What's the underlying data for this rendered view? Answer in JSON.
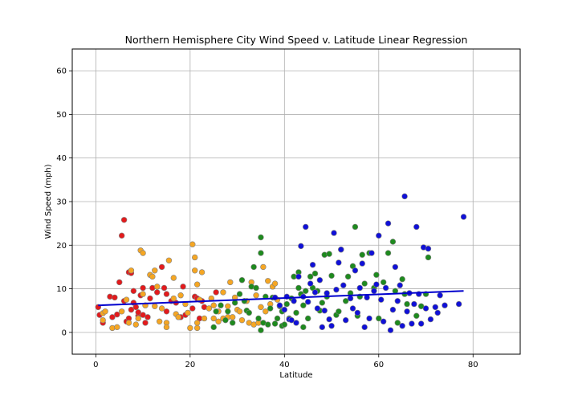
{
  "chart_data": {
    "type": "scatter",
    "title": "Northern Hemisphere City Wind Speed v. Latitude Linear Regression",
    "xlabel": "Latitude",
    "ylabel": "Wind Speed (mph)",
    "xlim": [
      -5,
      90
    ],
    "ylim": [
      -5,
      65
    ],
    "xticks": [
      0,
      20,
      40,
      60,
      80
    ],
    "yticks": [
      0,
      10,
      20,
      30,
      40,
      50,
      60
    ],
    "grid": true,
    "colors": {
      "red": "#e31a1c",
      "orange": "#f5a623",
      "green": "#1e8a1e",
      "blue": "#1010d8",
      "edge": "#808080",
      "regression": "#0000cd"
    },
    "series": [
      {
        "color_key": "red",
        "points": [
          [
            0.5,
            5.8
          ],
          [
            0.8,
            4.0
          ],
          [
            1.5,
            2.2
          ],
          [
            3,
            8.2
          ],
          [
            3.5,
            3.5
          ],
          [
            4,
            8
          ],
          [
            4.5,
            4.1
          ],
          [
            5,
            11.5
          ],
          [
            5.5,
            22.2
          ],
          [
            6,
            25.8
          ],
          [
            6,
            7.2
          ],
          [
            6.5,
            2.5
          ],
          [
            7,
            3.2
          ],
          [
            7,
            13.8
          ],
          [
            7.5,
            5.2
          ],
          [
            7.5,
            13.6
          ],
          [
            8,
            9.5
          ],
          [
            8,
            6.8
          ],
          [
            8.5,
            5.8
          ],
          [
            9,
            3.8
          ],
          [
            9,
            4.6
          ],
          [
            9.5,
            8.5
          ],
          [
            10,
            10.2
          ],
          [
            10,
            4.0
          ],
          [
            10.5,
            2.2
          ],
          [
            11,
            3.5
          ],
          [
            11.5,
            7.8
          ],
          [
            12,
            10.2
          ],
          [
            13,
            9.2
          ],
          [
            14,
            15
          ],
          [
            14.5,
            10.2
          ],
          [
            15,
            8.8
          ],
          [
            15,
            4.8
          ],
          [
            16,
            7.2
          ],
          [
            17,
            6.8
          ],
          [
            18,
            3.5
          ],
          [
            18.5,
            10.5
          ],
          [
            19,
            4.0
          ],
          [
            20.5,
            5.5
          ],
          [
            21,
            8.2
          ],
          [
            21.5,
            7.8
          ],
          [
            22,
            3.2
          ],
          [
            22.5,
            7.2
          ],
          [
            23,
            5.8
          ],
          [
            25.5,
            9.2
          ]
        ]
      },
      {
        "color_key": "orange",
        "points": [
          [
            1.5,
            4.4
          ],
          [
            1.5,
            2.8
          ],
          [
            2,
            4.8
          ],
          [
            3.5,
            1.0
          ],
          [
            4.5,
            1.2
          ],
          [
            5.5,
            4.8
          ],
          [
            6.5,
            7.5
          ],
          [
            7,
            2.2
          ],
          [
            7.5,
            14.2
          ],
          [
            8.5,
            1.8
          ],
          [
            9,
            3.2
          ],
          [
            9.5,
            18.8
          ],
          [
            10,
            18.2
          ],
          [
            10,
            8.8
          ],
          [
            10.5,
            6.2
          ],
          [
            11.5,
            13.2
          ],
          [
            12,
            12.8
          ],
          [
            12.5,
            14.2
          ],
          [
            12.5,
            6.0
          ],
          [
            13,
            10.5
          ],
          [
            13.5,
            2.5
          ],
          [
            14,
            5.5
          ],
          [
            15,
            2.2
          ],
          [
            15,
            1.2
          ],
          [
            15.5,
            16.5
          ],
          [
            16.5,
            7.8
          ],
          [
            16.5,
            12.5
          ],
          [
            17,
            4.2
          ],
          [
            17.5,
            3.5
          ],
          [
            18,
            8.5
          ],
          [
            19,
            6.5
          ],
          [
            19.5,
            4.5
          ],
          [
            20,
            1.0
          ],
          [
            20.5,
            20.2
          ],
          [
            21,
            17.2
          ],
          [
            21,
            14.2
          ],
          [
            21.5,
            11.0
          ],
          [
            21.5,
            2.2
          ],
          [
            21.5,
            1.0
          ],
          [
            22,
            7.5
          ],
          [
            22.5,
            13.8
          ],
          [
            23,
            3.2
          ],
          [
            24,
            5.5
          ],
          [
            24.5,
            7.8
          ],
          [
            25,
            3.2
          ],
          [
            25,
            6.2
          ],
          [
            26,
            4.8
          ],
          [
            26,
            2.5
          ],
          [
            27,
            9.2
          ],
          [
            27,
            3.2
          ],
          [
            28,
            3.5
          ],
          [
            28,
            6.0
          ],
          [
            28.5,
            11.5
          ],
          [
            29,
            3.5
          ],
          [
            29.5,
            8.0
          ],
          [
            30,
            5.2
          ],
          [
            30.5,
            4.8
          ],
          [
            31,
            2.8
          ],
          [
            32,
            7.2
          ],
          [
            32.5,
            2.2
          ],
          [
            33,
            11.5
          ],
          [
            33.5,
            1.8
          ],
          [
            34,
            8.5
          ],
          [
            34.5,
            2.2
          ],
          [
            35,
            5.8
          ],
          [
            35.5,
            15.0
          ],
          [
            36,
            4.8
          ],
          [
            36.5,
            11.8
          ],
          [
            37,
            6.5
          ],
          [
            37.5,
            10.5
          ],
          [
            38,
            11.2
          ],
          [
            38.5,
            7.5
          ]
        ]
      },
      {
        "color_key": "green",
        "points": [
          [
            25,
            1.2
          ],
          [
            25.5,
            4.8
          ],
          [
            26.5,
            6.2
          ],
          [
            27.5,
            2.8
          ],
          [
            28,
            4.8
          ],
          [
            29,
            2.2
          ],
          [
            29.5,
            6.8
          ],
          [
            30.5,
            8.8
          ],
          [
            31,
            12.0
          ],
          [
            31.5,
            7.2
          ],
          [
            32,
            5.0
          ],
          [
            32.5,
            4.5
          ],
          [
            33,
            10.5
          ],
          [
            33.5,
            15.0
          ],
          [
            34,
            10.2
          ],
          [
            34.5,
            3.2
          ],
          [
            35,
            0.5
          ],
          [
            35,
            21.8
          ],
          [
            35,
            18.2
          ],
          [
            35.5,
            2.2
          ],
          [
            36,
            8.2
          ],
          [
            36.5,
            1.8
          ],
          [
            37,
            5.5
          ],
          [
            37.5,
            8.0
          ],
          [
            38,
            2.0
          ],
          [
            38.5,
            3.2
          ],
          [
            39,
            6.0
          ],
          [
            39.5,
            1.5
          ],
          [
            39.5,
            4.8
          ],
          [
            40,
            1.8
          ],
          [
            40.5,
            6.5
          ],
          [
            41,
            3.2
          ],
          [
            41.5,
            7.8
          ],
          [
            42,
            12.8
          ],
          [
            42.5,
            4.5
          ],
          [
            43,
            13.8
          ],
          [
            43,
            10.2
          ],
          [
            43.5,
            8.8
          ],
          [
            44,
            1.2
          ],
          [
            44,
            6.2
          ],
          [
            44.5,
            9.5
          ],
          [
            45,
            3.2
          ],
          [
            45.5,
            12.8
          ],
          [
            46,
            10.2
          ],
          [
            46.5,
            13.5
          ],
          [
            47,
            9.5
          ],
          [
            47.5,
            5.0
          ],
          [
            48,
            6.8
          ],
          [
            48.5,
            17.8
          ],
          [
            49,
            8.2
          ],
          [
            49.5,
            18.0
          ],
          [
            50,
            13.0
          ],
          [
            51,
            4.0
          ],
          [
            51.5,
            4.8
          ],
          [
            52,
            19.0
          ],
          [
            53,
            7.2
          ],
          [
            53.5,
            12.8
          ],
          [
            54,
            9.0
          ],
          [
            54.5,
            15.2
          ],
          [
            55,
            24.2
          ],
          [
            55.5,
            3.8
          ],
          [
            56,
            8.2
          ],
          [
            56.5,
            17.8
          ],
          [
            57,
            11.2
          ],
          [
            58,
            18.2
          ],
          [
            59,
            10.2
          ],
          [
            59.5,
            13.2
          ],
          [
            60,
            3.2
          ],
          [
            61,
            11.5
          ],
          [
            62,
            18.2
          ],
          [
            63,
            20.8
          ],
          [
            63.5,
            9.5
          ],
          [
            64,
            2.2
          ],
          [
            65,
            12.2
          ],
          [
            65.5,
            8.8
          ],
          [
            66,
            6.5
          ],
          [
            68,
            3.8
          ],
          [
            69,
            6.0
          ],
          [
            70,
            8.8
          ],
          [
            70.5,
            17.2
          ]
        ]
      },
      {
        "color_key": "blue",
        "points": [
          [
            38,
            8.0
          ],
          [
            39,
            6.2
          ],
          [
            40,
            5.2
          ],
          [
            40.5,
            8.2
          ],
          [
            41,
            3.0
          ],
          [
            41.5,
            2.8
          ],
          [
            42,
            7.2
          ],
          [
            42.5,
            2.2
          ],
          [
            43,
            12.8
          ],
          [
            43.5,
            19.8
          ],
          [
            44,
            8.2
          ],
          [
            44.5,
            24.2
          ],
          [
            45,
            7.0
          ],
          [
            45.5,
            11.2
          ],
          [
            46,
            15.5
          ],
          [
            46.5,
            9.2
          ],
          [
            47,
            5.5
          ],
          [
            47.5,
            12.0
          ],
          [
            48,
            1.2
          ],
          [
            48.5,
            5.0
          ],
          [
            49,
            9.0
          ],
          [
            49.5,
            3.0
          ],
          [
            50,
            1.5
          ],
          [
            50.5,
            22.8
          ],
          [
            51,
            9.8
          ],
          [
            51.5,
            16.0
          ],
          [
            52,
            19.0
          ],
          [
            52.5,
            10.8
          ],
          [
            53,
            2.8
          ],
          [
            54,
            7.8
          ],
          [
            54.5,
            5.5
          ],
          [
            55,
            14.2
          ],
          [
            55.5,
            4.5
          ],
          [
            56,
            10.2
          ],
          [
            56.5,
            15.8
          ],
          [
            57,
            1.2
          ],
          [
            57.5,
            8.0
          ],
          [
            58,
            3.2
          ],
          [
            58.5,
            18.2
          ],
          [
            59,
            9.5
          ],
          [
            59.5,
            11.0
          ],
          [
            60,
            22.2
          ],
          [
            60.5,
            7.5
          ],
          [
            61,
            2.5
          ],
          [
            61.5,
            10.2
          ],
          [
            62,
            25.0
          ],
          [
            62.5,
            0.5
          ],
          [
            63,
            5.2
          ],
          [
            63.5,
            15.0
          ],
          [
            64,
            7.2
          ],
          [
            64.5,
            10.8
          ],
          [
            65,
            1.5
          ],
          [
            65.5,
            31.2
          ],
          [
            66,
            4.8
          ],
          [
            66.5,
            9.0
          ],
          [
            67,
            2.0
          ],
          [
            67.5,
            6.5
          ],
          [
            68,
            24.2
          ],
          [
            68.5,
            8.8
          ],
          [
            69,
            2.0
          ],
          [
            69.5,
            19.5
          ],
          [
            70,
            5.5
          ],
          [
            70.5,
            19.2
          ],
          [
            71,
            3.0
          ],
          [
            72,
            5.8
          ],
          [
            72.5,
            4.5
          ],
          [
            73,
            8.5
          ],
          [
            74,
            6.2
          ],
          [
            77,
            6.5
          ],
          [
            78,
            26.5
          ]
        ]
      }
    ],
    "regression": {
      "points": [
        [
          0.5,
          6.2
        ],
        [
          78,
          9.5
        ]
      ]
    }
  }
}
